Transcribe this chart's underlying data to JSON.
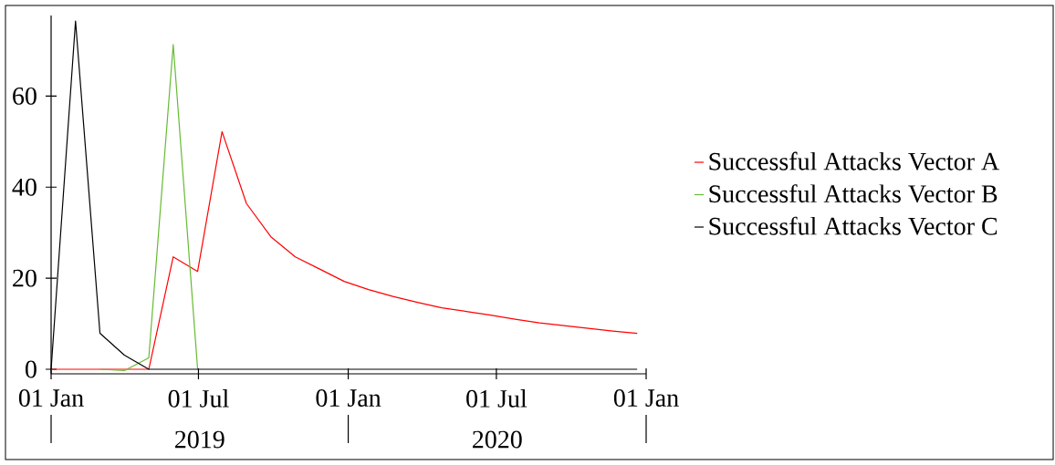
{
  "chart_data": {
    "type": "line",
    "x": [
      "2019-01-01",
      "2019-01-31",
      "2019-03-02",
      "2019-04-01",
      "2019-05-01",
      "2019-05-31",
      "2019-06-30",
      "2019-07-30",
      "2019-08-29",
      "2019-09-28",
      "2019-10-28",
      "2019-11-27",
      "2019-12-27",
      "2020-01-26",
      "2020-02-25",
      "2020-03-26",
      "2020-04-25",
      "2020-05-25",
      "2020-06-24",
      "2020-07-24",
      "2020-08-23",
      "2020-09-22",
      "2020-10-22",
      "2020-11-21",
      "2020-12-21"
    ],
    "series": [
      {
        "name": "Successful Attacks Vector A",
        "color": "#ff0000",
        "values": [
          0,
          0,
          0,
          0,
          0,
          24.7,
          21.5,
          52.2,
          36.4,
          29.1,
          24.7,
          22,
          19.3,
          17.5,
          16,
          14.7,
          13.5,
          12.7,
          11.9,
          11,
          10.2,
          9.6,
          9,
          8.4,
          7.9
        ]
      },
      {
        "name": "Successful Attacks Vector B",
        "color": "#66bb33",
        "values": [
          null,
          null,
          0,
          -0.3,
          2.5,
          71.3,
          0,
          null,
          null,
          null,
          null,
          null,
          null,
          null,
          null,
          null,
          null,
          null,
          null,
          null,
          null,
          null,
          null,
          null,
          null
        ]
      },
      {
        "name": "Successful Attacks Vector C",
        "color": "#000000",
        "values": [
          0,
          76.5,
          7.9,
          3.1,
          0,
          0,
          0,
          0,
          0,
          0,
          0,
          0,
          0,
          0,
          0,
          0,
          0,
          0,
          0,
          0,
          0,
          0,
          0,
          0,
          0
        ]
      }
    ],
    "xlim": [
      "2019-01-01",
      "2021-01-01"
    ],
    "xticks": [
      {
        "value": "2019-01-01",
        "label": "01 Jan"
      },
      {
        "value": "2019-07-01",
        "label": "01 Jul"
      },
      {
        "value": "2020-01-01",
        "label": "01 Jan"
      },
      {
        "value": "2020-07-01",
        "label": "01 Jul"
      },
      {
        "value": "2021-01-01",
        "label": "01 Jan"
      }
    ],
    "ylim": [
      -1,
      77.7
    ],
    "yticks": [
      0,
      20,
      40,
      60
    ],
    "annotations": [
      "2019",
      "2020"
    ],
    "legend": "right",
    "grid": false,
    "marker": "none",
    "line_style": "solid"
  }
}
